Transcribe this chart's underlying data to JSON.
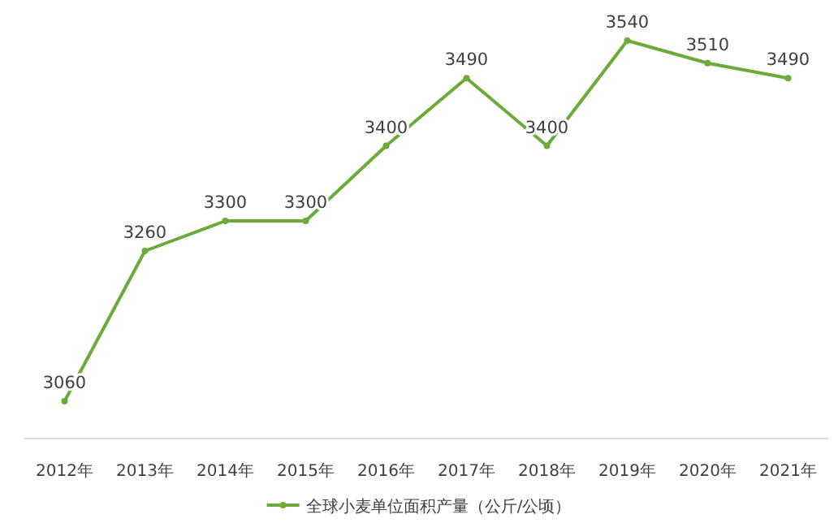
{
  "chart_data": {
    "type": "line",
    "categories": [
      "2012年",
      "2013年",
      "2014年",
      "2015年",
      "2016年",
      "2017年",
      "2018年",
      "2019年",
      "2020年",
      "2021年"
    ],
    "series": [
      {
        "name": "全球小麦单位面积产量（公斤/公顷）",
        "color": "#6aab3a",
        "values": [
          3060,
          3260,
          3300,
          3300,
          3400,
          3490,
          3400,
          3540,
          3510,
          3490
        ]
      }
    ],
    "data_labels": true,
    "legend": "bottom",
    "marker": "circle"
  }
}
